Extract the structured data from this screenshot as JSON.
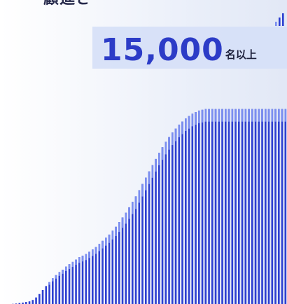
{
  "chart_data": {
    "type": "bar",
    "title": "",
    "xlabel": "",
    "ylabel": "",
    "ylim": [
      0,
      15000
    ],
    "grid": false,
    "legend": "none",
    "bar_color": "#2d3fd0",
    "tip_color": "#7b8ef0",
    "x": [
      1,
      2,
      3,
      4,
      5,
      6,
      7,
      8,
      9,
      10,
      11,
      12,
      13,
      14,
      15,
      16,
      17,
      18,
      19,
      20,
      21,
      22,
      23,
      24,
      25,
      26,
      27,
      28,
      29,
      30,
      31,
      32,
      33,
      34,
      35,
      36,
      37,
      38,
      39,
      40,
      41,
      42,
      43,
      44,
      45,
      46,
      47,
      48,
      49,
      50,
      51,
      52,
      53,
      54,
      55,
      56,
      57,
      58,
      59,
      60,
      61,
      62,
      63,
      64,
      65,
      66,
      67,
      68,
      69,
      70,
      71,
      72,
      73,
      74,
      75,
      76,
      77,
      78,
      79,
      80,
      81,
      82,
      83
    ],
    "values": [
      10,
      30,
      60,
      90,
      130,
      170,
      260,
      420,
      640,
      900,
      1150,
      1400,
      1650,
      1850,
      2050,
      2200,
      2400,
      2550,
      2700,
      2850,
      3000,
      3100,
      3200,
      3350,
      3500,
      3650,
      3850,
      4050,
      4250,
      4450,
      4700,
      4950,
      5250,
      5550,
      5850,
      6200,
      6550,
      6900,
      7300,
      7700,
      8100,
      8500,
      8900,
      9300,
      9700,
      10050,
      10400,
      10700,
      11000,
      11250,
      11500,
      11700,
      11900,
      12050,
      12200,
      12300,
      12400,
      12450,
      12500,
      12500,
      12500,
      12500,
      12500,
      12500,
      12500,
      12500,
      12500,
      12500,
      12500,
      12500,
      12500,
      12500,
      12500,
      12500,
      12500,
      12500,
      12500,
      12500,
      12500,
      12500,
      12500,
      12500,
      12500
    ],
    "annotation": {
      "heading_partial": "顧進さ",
      "value": "15,000",
      "unit": "名以上",
      "top_ticks": [
        1500,
        3000,
        4500
      ]
    }
  }
}
